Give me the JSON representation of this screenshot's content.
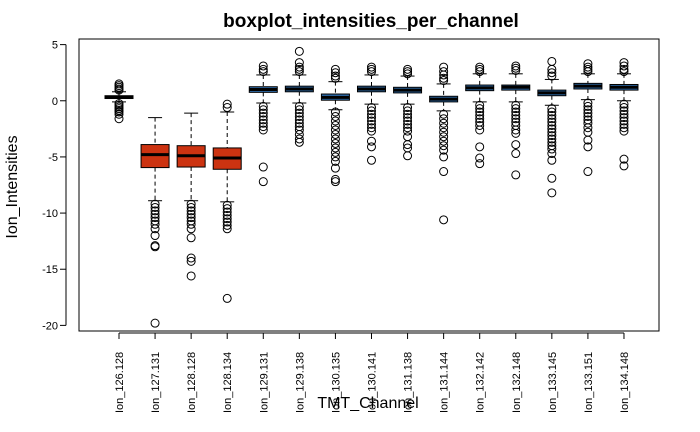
{
  "chart_data": {
    "type": "boxplot",
    "title": "boxplot_intensities_per_channel",
    "xlabel": "TMT_Channel",
    "ylabel": "Ion_Intensities",
    "ylim": [
      -20.5,
      5.5
    ],
    "yticks": [
      5,
      0,
      -5,
      -10,
      -15,
      -20
    ],
    "ytick_labels": [
      "5",
      "0",
      "-5",
      "-10",
      "-15",
      "-20"
    ],
    "categories": [
      "Ion_126.128",
      "Ion_127.131",
      "Ion_128.128",
      "Ion_128.134",
      "Ion_129.131",
      "Ion_129.138",
      "Ion_130.135",
      "Ion_130.141",
      "Ion_131.138",
      "Ion_131.144",
      "Ion_132.142",
      "Ion_132.148",
      "Ion_133.145",
      "Ion_133.151",
      "Ion_134.148"
    ],
    "colors": {
      "red": "#cc3311",
      "blue": "#2f6fb0",
      "black": "#000000"
    },
    "boxes": [
      {
        "name": "Ion_126.128",
        "min": -0.1,
        "q1": 0.2,
        "median": 0.32,
        "q3": 0.45,
        "max": 0.8,
        "color": "black",
        "outliers": [
          1.5,
          1.35,
          1.2,
          1.05,
          0.95,
          -0.25,
          -0.4,
          -0.55,
          -0.7,
          -0.85,
          -1.0,
          -1.2,
          -1.6
        ]
      },
      {
        "name": "Ion_127.131",
        "min": -8.9,
        "q1": -5.95,
        "median": -4.8,
        "q3": -3.9,
        "max": -1.5,
        "color": "red",
        "outliers": [
          -9.2,
          -9.5,
          -9.8,
          -10.1,
          -10.4,
          -10.7,
          -11.0,
          -11.4,
          -12.0,
          -12.9,
          -13.0,
          -19.8
        ]
      },
      {
        "name": "Ion_128.128",
        "min": -8.9,
        "q1": -5.9,
        "median": -4.9,
        "q3": -4.0,
        "max": -1.1,
        "color": "red",
        "outliers": [
          -9.2,
          -9.5,
          -9.8,
          -10.1,
          -10.4,
          -10.7,
          -11.0,
          -11.4,
          -12.2,
          -14.0,
          -14.3,
          -15.6
        ]
      },
      {
        "name": "Ion_128.134",
        "min": -9.0,
        "q1": -6.1,
        "median": -5.1,
        "q3": -4.2,
        "max": -1.0,
        "color": "red",
        "outliers": [
          -0.3,
          -0.6,
          -9.3,
          -9.6,
          -9.9,
          -10.2,
          -10.5,
          -10.8,
          -11.1,
          -11.4,
          -17.6
        ]
      },
      {
        "name": "Ion_129.131",
        "min": -0.2,
        "q1": 0.75,
        "median": 1.0,
        "q3": 1.25,
        "max": 2.3,
        "color": "blue",
        "outliers": [
          3.1,
          2.8,
          2.6,
          -0.5,
          -0.8,
          -1.1,
          -1.4,
          -1.7,
          -2.0,
          -2.3,
          -2.6,
          -5.9,
          -7.2
        ]
      },
      {
        "name": "Ion_129.138",
        "min": -0.2,
        "q1": 0.8,
        "median": 1.05,
        "q3": 1.3,
        "max": 2.3,
        "color": "blue",
        "outliers": [
          4.4,
          3.4,
          3.0,
          2.8,
          2.6,
          -0.5,
          -0.8,
          -1.1,
          -1.4,
          -1.7,
          -2.0,
          -2.3,
          -2.6,
          -3.0,
          -3.4,
          -3.7
        ]
      },
      {
        "name": "Ion_130.135",
        "min": -0.8,
        "q1": 0.05,
        "median": 0.3,
        "q3": 0.6,
        "max": 1.7,
        "color": "blue",
        "outliers": [
          2.8,
          2.5,
          2.2,
          2.0,
          -1.0,
          -1.4,
          -1.8,
          -2.2,
          -2.6,
          -3.0,
          -3.4,
          -3.8,
          -4.2,
          -4.6,
          -5.0,
          -5.4,
          -6.0,
          -7.0,
          -7.2
        ]
      },
      {
        "name": "Ion_130.141",
        "min": -0.3,
        "q1": 0.8,
        "median": 1.05,
        "q3": 1.3,
        "max": 2.3,
        "color": "blue",
        "outliers": [
          3.0,
          2.8,
          2.6,
          -0.6,
          -0.9,
          -1.2,
          -1.5,
          -1.8,
          -2.1,
          -2.4,
          -2.7,
          -3.6,
          -4.1,
          -5.3
        ]
      },
      {
        "name": "Ion_131.138",
        "min": -0.3,
        "q1": 0.7,
        "median": 0.95,
        "q3": 1.2,
        "max": 2.2,
        "color": "blue",
        "outliers": [
          2.8,
          2.6,
          2.4,
          -0.6,
          -0.9,
          -1.2,
          -1.5,
          -1.8,
          -2.1,
          -2.4,
          -2.7,
          -3.2,
          -3.9,
          -4.2,
          -4.9
        ]
      },
      {
        "name": "Ion_131.144",
        "min": -0.9,
        "q1": -0.1,
        "median": 0.15,
        "q3": 0.4,
        "max": 1.5,
        "color": "blue",
        "outliers": [
          3.0,
          2.6,
          2.3,
          2.0,
          1.8,
          -1.2,
          -1.6,
          -2.0,
          -2.4,
          -2.8,
          -3.2,
          -3.6,
          -4.0,
          -4.4,
          -5.0,
          -6.3,
          -10.6
        ]
      },
      {
        "name": "Ion_132.142",
        "min": -0.1,
        "q1": 0.9,
        "median": 1.15,
        "q3": 1.4,
        "max": 2.4,
        "color": "blue",
        "outliers": [
          3.0,
          2.8,
          2.6,
          -0.4,
          -0.7,
          -1.0,
          -1.3,
          -1.6,
          -1.9,
          -2.2,
          -2.6,
          -4.1,
          -5.1,
          -5.6
        ]
      },
      {
        "name": "Ion_132.148",
        "min": -0.1,
        "q1": 0.95,
        "median": 1.2,
        "q3": 1.4,
        "max": 2.4,
        "color": "blue",
        "outliers": [
          3.1,
          2.9,
          2.7,
          -0.4,
          -0.7,
          -1.0,
          -1.3,
          -1.6,
          -1.9,
          -2.2,
          -2.6,
          -2.9,
          -3.9,
          -4.7,
          -6.6
        ]
      },
      {
        "name": "Ion_133.145",
        "min": -0.4,
        "q1": 0.45,
        "median": 0.7,
        "q3": 0.95,
        "max": 1.9,
        "color": "blue",
        "outliers": [
          3.5,
          2.8,
          2.5,
          2.2,
          -0.7,
          -1.0,
          -1.3,
          -1.6,
          -1.9,
          -2.2,
          -2.5,
          -2.8,
          -3.1,
          -3.4,
          -3.7,
          -4.0,
          -4.3,
          -4.7,
          -5.3,
          -6.9,
          -8.2
        ]
      },
      {
        "name": "Ion_133.151",
        "min": 0.1,
        "q1": 1.05,
        "median": 1.3,
        "q3": 1.55,
        "max": 2.4,
        "color": "blue",
        "outliers": [
          3.3,
          3.0,
          2.8,
          2.6,
          -0.2,
          -0.5,
          -0.8,
          -1.1,
          -1.4,
          -1.7,
          -2.0,
          -2.4,
          -2.8,
          -3.5,
          -4.1,
          -6.3
        ]
      },
      {
        "name": "Ion_134.148",
        "min": 0.0,
        "q1": 0.95,
        "median": 1.2,
        "q3": 1.45,
        "max": 2.4,
        "color": "blue",
        "outliers": [
          3.4,
          3.1,
          2.8,
          2.6,
          -0.3,
          -0.6,
          -0.9,
          -1.2,
          -1.5,
          -1.8,
          -2.1,
          -2.4,
          -2.7,
          -5.2,
          -5.8
        ]
      }
    ]
  }
}
